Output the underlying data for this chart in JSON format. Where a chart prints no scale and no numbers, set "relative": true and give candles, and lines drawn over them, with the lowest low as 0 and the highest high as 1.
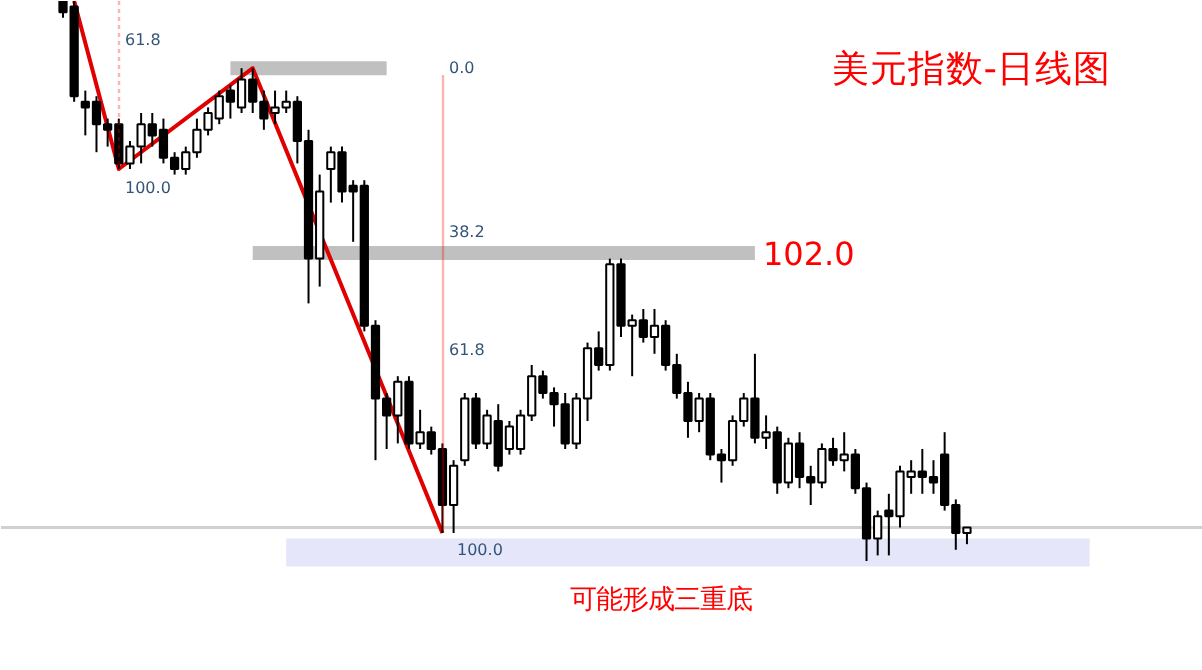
{
  "chart_data": {
    "type": "candlestick",
    "relative": true,
    "title": "美元指数-日线图",
    "categories": [
      null,
      null,
      null,
      null,
      null,
      null,
      null,
      null,
      null,
      null,
      null,
      null,
      null,
      null,
      null,
      null,
      null,
      null,
      null,
      null,
      null,
      null,
      null,
      null,
      null,
      null,
      null,
      null,
      null,
      null,
      null,
      null,
      null,
      null,
      null,
      null,
      null,
      null,
      null,
      null,
      null,
      null,
      null,
      null,
      null,
      null,
      null,
      null,
      null,
      null,
      null,
      null,
      null,
      null,
      null,
      null,
      null,
      null,
      null,
      null,
      null,
      null,
      null,
      null,
      null,
      null,
      null,
      null,
      null,
      null,
      null,
      null,
      null,
      null,
      null,
      null,
      null,
      null,
      null,
      null,
      null,
      null
    ],
    "ohlc": [
      [
        1,
        1,
        0.97,
        0.98
      ],
      [
        0.99,
        1,
        0.82,
        0.83
      ],
      [
        0.82,
        0.84,
        0.76,
        0.81
      ],
      [
        0.82,
        0.83,
        0.73,
        0.78
      ],
      [
        0.78,
        0.79,
        0.74,
        0.77
      ],
      [
        0.78,
        0.79,
        0.7,
        0.71
      ],
      [
        0.71,
        0.75,
        0.7,
        0.74
      ],
      [
        0.74,
        0.8,
        0.71,
        0.78
      ],
      [
        0.78,
        0.8,
        0.74,
        0.76
      ],
      [
        0.77,
        0.79,
        0.71,
        0.72
      ],
      [
        0.72,
        0.73,
        0.69,
        0.7
      ],
      [
        0.7,
        0.74,
        0.69,
        0.73
      ],
      [
        0.73,
        0.79,
        0.72,
        0.77
      ],
      [
        0.77,
        0.81,
        0.76,
        0.8
      ],
      [
        0.79,
        0.84,
        0.78,
        0.83
      ],
      [
        0.84,
        0.85,
        0.79,
        0.82
      ],
      [
        0.81,
        0.88,
        0.8,
        0.86
      ],
      [
        0.86,
        0.88,
        0.8,
        0.82
      ],
      [
        0.82,
        0.84,
        0.77,
        0.79
      ],
      [
        0.8,
        0.84,
        0.78,
        0.81
      ],
      [
        0.81,
        0.84,
        0.8,
        0.82
      ],
      [
        0.82,
        0.83,
        0.71,
        0.75
      ],
      [
        0.75,
        0.77,
        0.46,
        0.54
      ],
      [
        0.54,
        0.69,
        0.49,
        0.66
      ],
      [
        0.7,
        0.74,
        0.64,
        0.73
      ],
      [
        0.73,
        0.74,
        0.64,
        0.66
      ],
      [
        0.67,
        0.68,
        0.57,
        0.66
      ],
      [
        0.67,
        0.68,
        0.41,
        0.42
      ],
      [
        0.42,
        0.43,
        0.18,
        0.29
      ],
      [
        0.29,
        0.3,
        0.2,
        0.26
      ],
      [
        0.26,
        0.33,
        0.21,
        0.32
      ],
      [
        0.32,
        0.33,
        0.2,
        0.21
      ],
      [
        0.21,
        0.27,
        0.2,
        0.23
      ],
      [
        0.23,
        0.24,
        0.19,
        0.2
      ],
      [
        0.2,
        0.21,
        0.05,
        0.1
      ],
      [
        0.1,
        0.18,
        0.05,
        0.17
      ],
      [
        0.18,
        0.3,
        0.17,
        0.29
      ],
      [
        0.29,
        0.3,
        0.2,
        0.21
      ],
      [
        0.21,
        0.27,
        0.2,
        0.26
      ],
      [
        0.25,
        0.28,
        0.16,
        0.17
      ],
      [
        0.2,
        0.25,
        0.19,
        0.24
      ],
      [
        0.2,
        0.27,
        0.19,
        0.26
      ],
      [
        0.26,
        0.35,
        0.25,
        0.33
      ],
      [
        0.33,
        0.34,
        0.29,
        0.3
      ],
      [
        0.3,
        0.31,
        0.24,
        0.28
      ],
      [
        0.28,
        0.3,
        0.2,
        0.21
      ],
      [
        0.21,
        0.3,
        0.2,
        0.29
      ],
      [
        0.29,
        0.39,
        0.25,
        0.38
      ],
      [
        0.38,
        0.41,
        0.34,
        0.35
      ],
      [
        0.35,
        0.54,
        0.34,
        0.53
      ],
      [
        0.53,
        0.54,
        0.4,
        0.42
      ],
      [
        0.42,
        0.44,
        0.33,
        0.43
      ],
      [
        0.43,
        0.45,
        0.39,
        0.4
      ],
      [
        0.4,
        0.45,
        0.37,
        0.42
      ],
      [
        0.42,
        0.43,
        0.34,
        0.35
      ],
      [
        0.35,
        0.37,
        0.29,
        0.3
      ],
      [
        0.3,
        0.32,
        0.22,
        0.25
      ],
      [
        0.25,
        0.3,
        0.23,
        0.29
      ],
      [
        0.29,
        0.3,
        0.18,
        0.19
      ],
      [
        0.19,
        0.2,
        0.14,
        0.18
      ],
      [
        0.18,
        0.26,
        0.17,
        0.25
      ],
      [
        0.25,
        0.3,
        0.24,
        0.29
      ],
      [
        0.29,
        0.37,
        0.21,
        0.22
      ],
      [
        0.22,
        0.26,
        0.2,
        0.23
      ],
      [
        0.23,
        0.24,
        0.12,
        0.14
      ],
      [
        0.14,
        0.22,
        0.13,
        0.21
      ],
      [
        0.21,
        0.23,
        0.13,
        0.15
      ],
      [
        0.15,
        0.17,
        0.1,
        0.14
      ],
      [
        0.14,
        0.21,
        0.13,
        0.2
      ],
      [
        0.2,
        0.22,
        0.17,
        0.18
      ],
      [
        0.18,
        0.23,
        0.16,
        0.19
      ],
      [
        0.19,
        0.2,
        0.12,
        0.13
      ],
      [
        0.13,
        0.14,
        0,
        0.04
      ],
      [
        0.04,
        0.09,
        0.01,
        0.08
      ],
      [
        0.09,
        0.12,
        0.01,
        0.08
      ],
      [
        0.08,
        0.17,
        0.06,
        0.16
      ],
      [
        0.15,
        0.18,
        0.12,
        0.16
      ],
      [
        0.16,
        0.2,
        0.12,
        0.15
      ],
      [
        0.15,
        0.18,
        0.12,
        0.14
      ],
      [
        0.19,
        0.23,
        0.09,
        0.1
      ],
      [
        0.1,
        0.11,
        0.02,
        0.05
      ],
      [
        0.05,
        0.06,
        0.03,
        0.06
      ]
    ],
    "series": [
      {
        "type": "line",
        "color": "#c0c0c0",
        "values": [
          null,
          null,
          null,
          null,
          null,
          null,
          null,
          null,
          null,
          null,
          null,
          null,
          null,
          null,
          null,
          0.88,
          0.88,
          0.88,
          0.88,
          0.88,
          0.88,
          0.88,
          0.88,
          0.88,
          0.88,
          0.88,
          0.88,
          0.88,
          0.88,
          0.88,
          null,
          null,
          null,
          null,
          null,
          null,
          null,
          null,
          null,
          null,
          null,
          null,
          null,
          null,
          null,
          null,
          null,
          null,
          null,
          null,
          null,
          null,
          null,
          null,
          null,
          null,
          null,
          null,
          null,
          null,
          null,
          null,
          null,
          null,
          null,
          null,
          null,
          null,
          null,
          null,
          null,
          null,
          null,
          null,
          null,
          null,
          null,
          null,
          null,
          null,
          null,
          null
        ]
      },
      {
        "type": "line",
        "color": "#c0c0c0",
        "values": [
          null,
          null,
          null,
          null,
          null,
          null,
          null,
          null,
          null,
          null,
          null,
          null,
          null,
          null,
          null,
          null,
          null,
          0.55,
          0.55,
          0.55,
          0.55,
          0.55,
          0.55,
          0.55,
          0.55,
          0.55,
          0.55,
          0.55,
          0.55,
          0.55,
          0.55,
          0.55,
          0.55,
          0.55,
          0.55,
          0.55,
          0.55,
          0.55,
          0.55,
          0.55,
          0.55,
          0.55,
          0.55,
          0.55,
          0.55,
          0.55,
          0.55,
          0.55,
          0.55,
          0.55,
          0.55,
          0.55,
          0.55,
          0.55,
          0.55,
          0.55,
          0.55,
          0.55,
          0.55,
          0.55,
          0.55,
          0.55,
          0.55,
          null,
          null,
          null,
          null,
          null,
          null,
          null,
          null,
          null,
          null,
          null,
          null,
          null,
          null,
          null,
          null,
          null,
          null,
          null
        ]
      },
      {
        "type": "line",
        "color": "#e00000",
        "values": [
          null,
          1,
          null,
          null,
          null,
          0.7,
          null,
          null,
          null,
          null,
          null,
          null,
          null,
          null,
          null,
          null,
          null,
          0.88,
          null,
          null,
          null,
          null,
          null,
          null,
          null,
          null,
          null,
          null,
          null,
          null,
          null,
          null,
          null,
          null,
          0.05,
          null,
          null,
          null,
          null,
          null,
          null,
          null,
          null,
          null,
          null,
          null,
          null,
          null,
          null,
          null,
          null,
          null,
          null,
          null,
          null,
          null,
          null,
          null,
          null,
          null,
          null,
          null,
          null,
          null,
          null,
          null,
          null,
          null,
          null,
          null,
          null,
          null,
          null,
          null,
          null,
          null,
          null,
          null,
          null,
          null,
          null,
          null
        ]
      }
    ],
    "ref_lines": [
      {
        "axis": "y",
        "value": 0.06,
        "color": "#d0d0d0"
      }
    ],
    "bands": [
      {
        "axis": "y",
        "from": -0.01,
        "to": 0.04,
        "color": "#e6e6fa"
      }
    ],
    "annotations": [
      "102.0",
      "可能形成三重底",
      "61.8",
      "100.0",
      "0.0",
      "38.2",
      "61.8",
      "100.0"
    ],
    "grid": false,
    "tick_labels": false
  }
}
